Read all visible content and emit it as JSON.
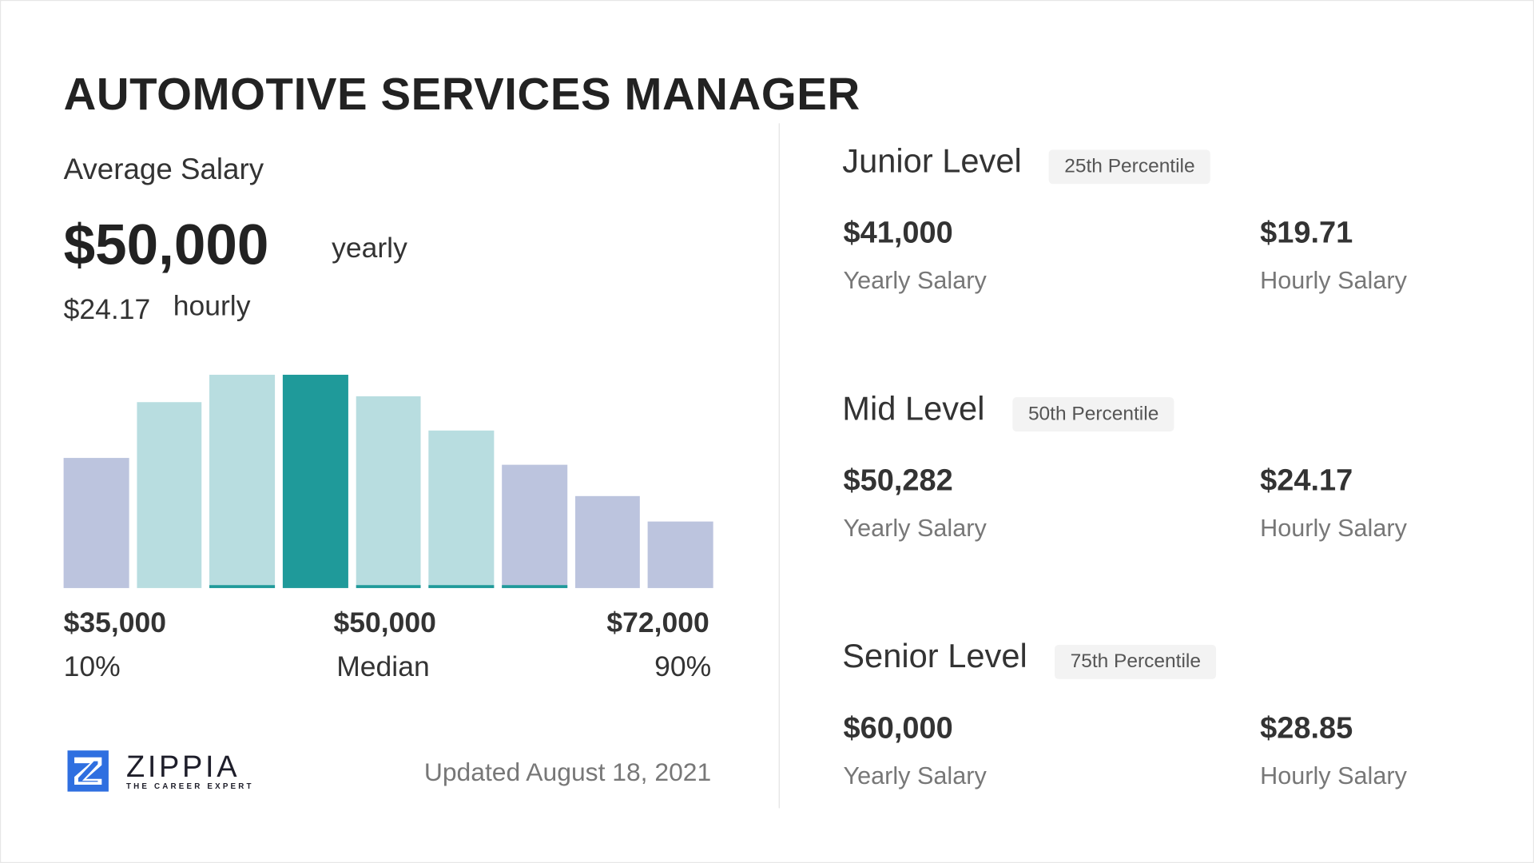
{
  "title": "AUTOMOTIVE SERVICES MANAGER",
  "average": {
    "label": "Average Salary",
    "yearly_value": "$50,000",
    "yearly_unit": "yearly",
    "hourly_value": "$24.17",
    "hourly_unit": "hourly"
  },
  "chart_data": {
    "type": "bar",
    "title": "",
    "values": [
      61,
      87,
      100,
      100,
      90,
      74,
      58,
      43,
      31
    ],
    "highlight_index": 3,
    "bar_styles": [
      "outer",
      "inner",
      "inner",
      "median",
      "inner",
      "inner",
      "outer",
      "outer",
      "outer"
    ],
    "underlined": [
      2,
      4,
      5,
      6
    ],
    "colors": {
      "outer": "#bcc4de",
      "inner": "#b8dde0",
      "median": "#1f9a9a",
      "underline": "#1f9a9a"
    },
    "tick_labels": [
      {
        "value": "$35,000",
        "label": "10%"
      },
      {
        "value": "$50,000",
        "label": "Median"
      },
      {
        "value": "$72,000",
        "label": "90%"
      }
    ]
  },
  "logo": {
    "name": "ZIPPIA",
    "tagline": "THE CAREER EXPERT",
    "color": "#2f6fe0"
  },
  "updated": "Updated August 18, 2021",
  "levels": [
    {
      "name": "Junior Level",
      "badge": "25th Percentile",
      "yearly": "$41,000",
      "yearly_label": "Yearly Salary",
      "hourly": "$19.71",
      "hourly_label": "Hourly Salary"
    },
    {
      "name": "Mid Level",
      "badge": "50th Percentile",
      "yearly": "$50,282",
      "yearly_label": "Yearly Salary",
      "hourly": "$24.17",
      "hourly_label": "Hourly Salary"
    },
    {
      "name": "Senior Level",
      "badge": "75th Percentile",
      "yearly": "$60,000",
      "yearly_label": "Yearly Salary",
      "hourly": "$28.85",
      "hourly_label": "Hourly Salary"
    }
  ]
}
